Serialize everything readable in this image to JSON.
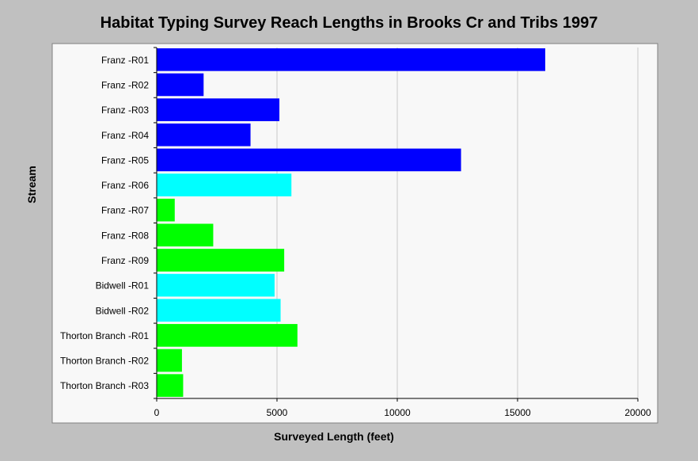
{
  "chart_data": {
    "type": "bar",
    "orientation": "horizontal",
    "title": "Habitat Typing Survey Reach Lengths in Brooks Cr and Tribs 1997",
    "xlabel": "Surveyed Length (feet)",
    "ylabel": "Stream",
    "xlim": [
      0,
      20000
    ],
    "xticks": [
      "0",
      "5000",
      "10000",
      "15000",
      "20000"
    ],
    "grid": "vertical",
    "legend": "none",
    "categories": [
      "Franz -R01",
      "Franz -R02",
      "Franz -R03",
      "Franz -R04",
      "Franz -R05",
      "Franz -R06",
      "Franz -R07",
      "Franz -R08",
      "Franz -R09",
      "Bidwell -R01",
      "Bidwell -R02",
      "Thorton Branch -R01",
      "Thorton Branch -R02",
      "Thorton Branch -R03"
    ],
    "values": [
      16150,
      1950,
      5100,
      3900,
      12650,
      5600,
      750,
      2350,
      5300,
      4900,
      5150,
      5850,
      1050,
      1100
    ],
    "bar_colors": [
      "#0000ff",
      "#0000ff",
      "#0000ff",
      "#0000ff",
      "#0000ff",
      "#00ffff",
      "#00ff00",
      "#00ff00",
      "#00ff00",
      "#00ffff",
      "#00ffff",
      "#00ff00",
      "#00ff00",
      "#00ff00"
    ]
  },
  "colors": {
    "background": "#c0c0c0",
    "plot_background": "#f8f8f8",
    "grid": "#c8c8c8"
  }
}
